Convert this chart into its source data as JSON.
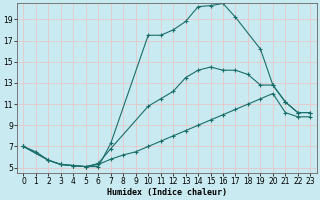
{
  "xlabel": "Humidex (Indice chaleur)",
  "bg_color": "#c8eaf0",
  "line_color": "#1a6e6a",
  "grid_color": "#e8c8c8",
  "xlim": [
    -0.5,
    23.5
  ],
  "ylim": [
    4.5,
    20.5
  ],
  "xticks": [
    0,
    1,
    2,
    3,
    4,
    5,
    6,
    7,
    8,
    9,
    10,
    11,
    12,
    13,
    14,
    15,
    16,
    17,
    18,
    19,
    20,
    21,
    22,
    23
  ],
  "yticks": [
    5,
    7,
    9,
    11,
    13,
    15,
    17,
    19
  ],
  "line1_x": [
    0,
    1,
    2,
    3,
    4,
    5,
    6,
    7,
    10,
    11,
    12,
    13,
    14,
    15,
    16,
    17,
    19,
    20,
    21,
    22,
    23
  ],
  "line1_y": [
    7.0,
    6.5,
    5.7,
    5.3,
    5.2,
    5.1,
    5.1,
    7.3,
    17.5,
    17.5,
    18.0,
    18.8,
    20.2,
    20.3,
    20.5,
    19.2,
    16.2,
    12.8,
    11.2,
    10.2,
    10.2
  ],
  "line2_x": [
    0,
    2,
    3,
    4,
    5,
    6,
    7,
    10,
    11,
    12,
    13,
    14,
    15,
    16,
    17,
    18,
    19,
    20,
    21,
    22,
    23
  ],
  "line2_y": [
    7.0,
    5.7,
    5.3,
    5.2,
    5.1,
    5.4,
    6.8,
    10.8,
    11.5,
    12.2,
    13.5,
    14.2,
    14.5,
    14.2,
    14.2,
    13.8,
    12.8,
    12.8,
    11.2,
    10.2,
    10.2
  ],
  "line3_x": [
    0,
    2,
    3,
    4,
    5,
    6,
    7,
    8,
    9,
    10,
    11,
    12,
    13,
    14,
    15,
    16,
    17,
    18,
    19,
    20,
    21,
    22,
    23
  ],
  "line3_y": [
    7.0,
    5.7,
    5.3,
    5.2,
    5.1,
    5.3,
    5.8,
    6.2,
    6.5,
    7.0,
    7.5,
    8.0,
    8.5,
    9.0,
    9.5,
    10.0,
    10.5,
    11.0,
    11.5,
    12.0,
    10.2,
    9.8,
    9.8
  ],
  "xlabel_fontsize": 6,
  "tick_fontsize": 5.5
}
